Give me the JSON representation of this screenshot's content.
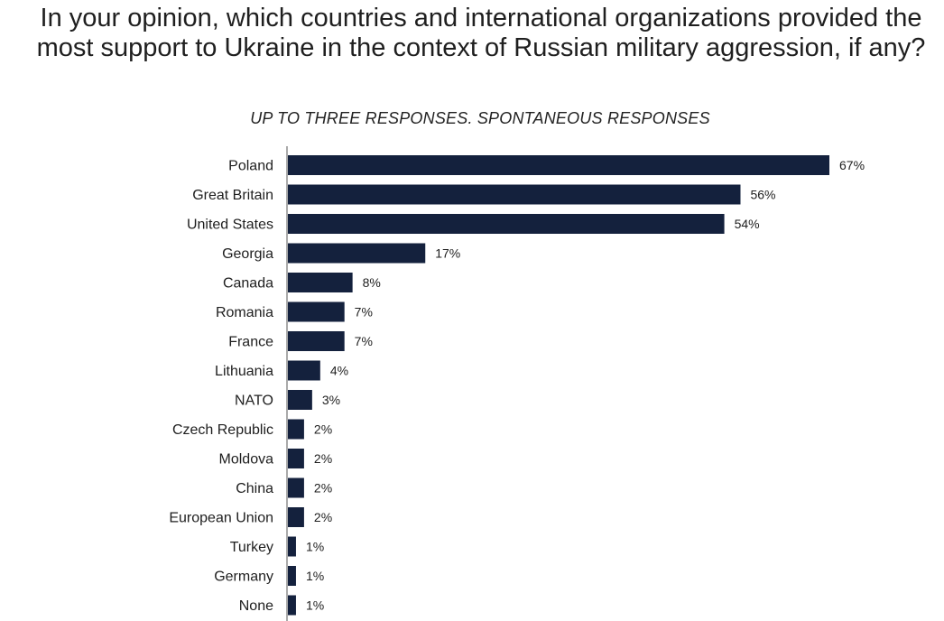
{
  "title": "In your opinion, which countries and international organizations provided the most support to Ukraine in the context of Russian military aggression, if any?",
  "subtitle": "UP TO THREE RESPONSES. SPONTANEOUS RESPONSES",
  "colors": {
    "bar": "#14213d",
    "axis": "#555555"
  },
  "chart_data": {
    "type": "bar",
    "orientation": "horizontal",
    "title": "In your opinion, which countries and international organizations provided the most support to Ukraine in the context of Russian military aggression, if any?",
    "subtitle": "UP TO THREE RESPONSES. SPONTANEOUS RESPONSES",
    "categories": [
      "Poland",
      "Great Britain",
      "United States",
      "Georgia",
      "Canada",
      "Romania",
      "France",
      "Lithuania",
      "NATO",
      "Czech Republic",
      "Moldova",
      "China",
      "European Union",
      "Turkey",
      "Germany",
      "None"
    ],
    "values": [
      67,
      56,
      54,
      17,
      8,
      7,
      7,
      4,
      3,
      2,
      2,
      2,
      2,
      1,
      1,
      1
    ],
    "value_labels": [
      "67%",
      "56%",
      "54%",
      "17%",
      "8%",
      "7%",
      "7%",
      "4%",
      "3%",
      "2%",
      "2%",
      "2%",
      "2%",
      "1%",
      "1%",
      "1%"
    ],
    "unit": "%",
    "xlim": [
      0,
      67
    ],
    "grid": false,
    "legend": "none"
  }
}
